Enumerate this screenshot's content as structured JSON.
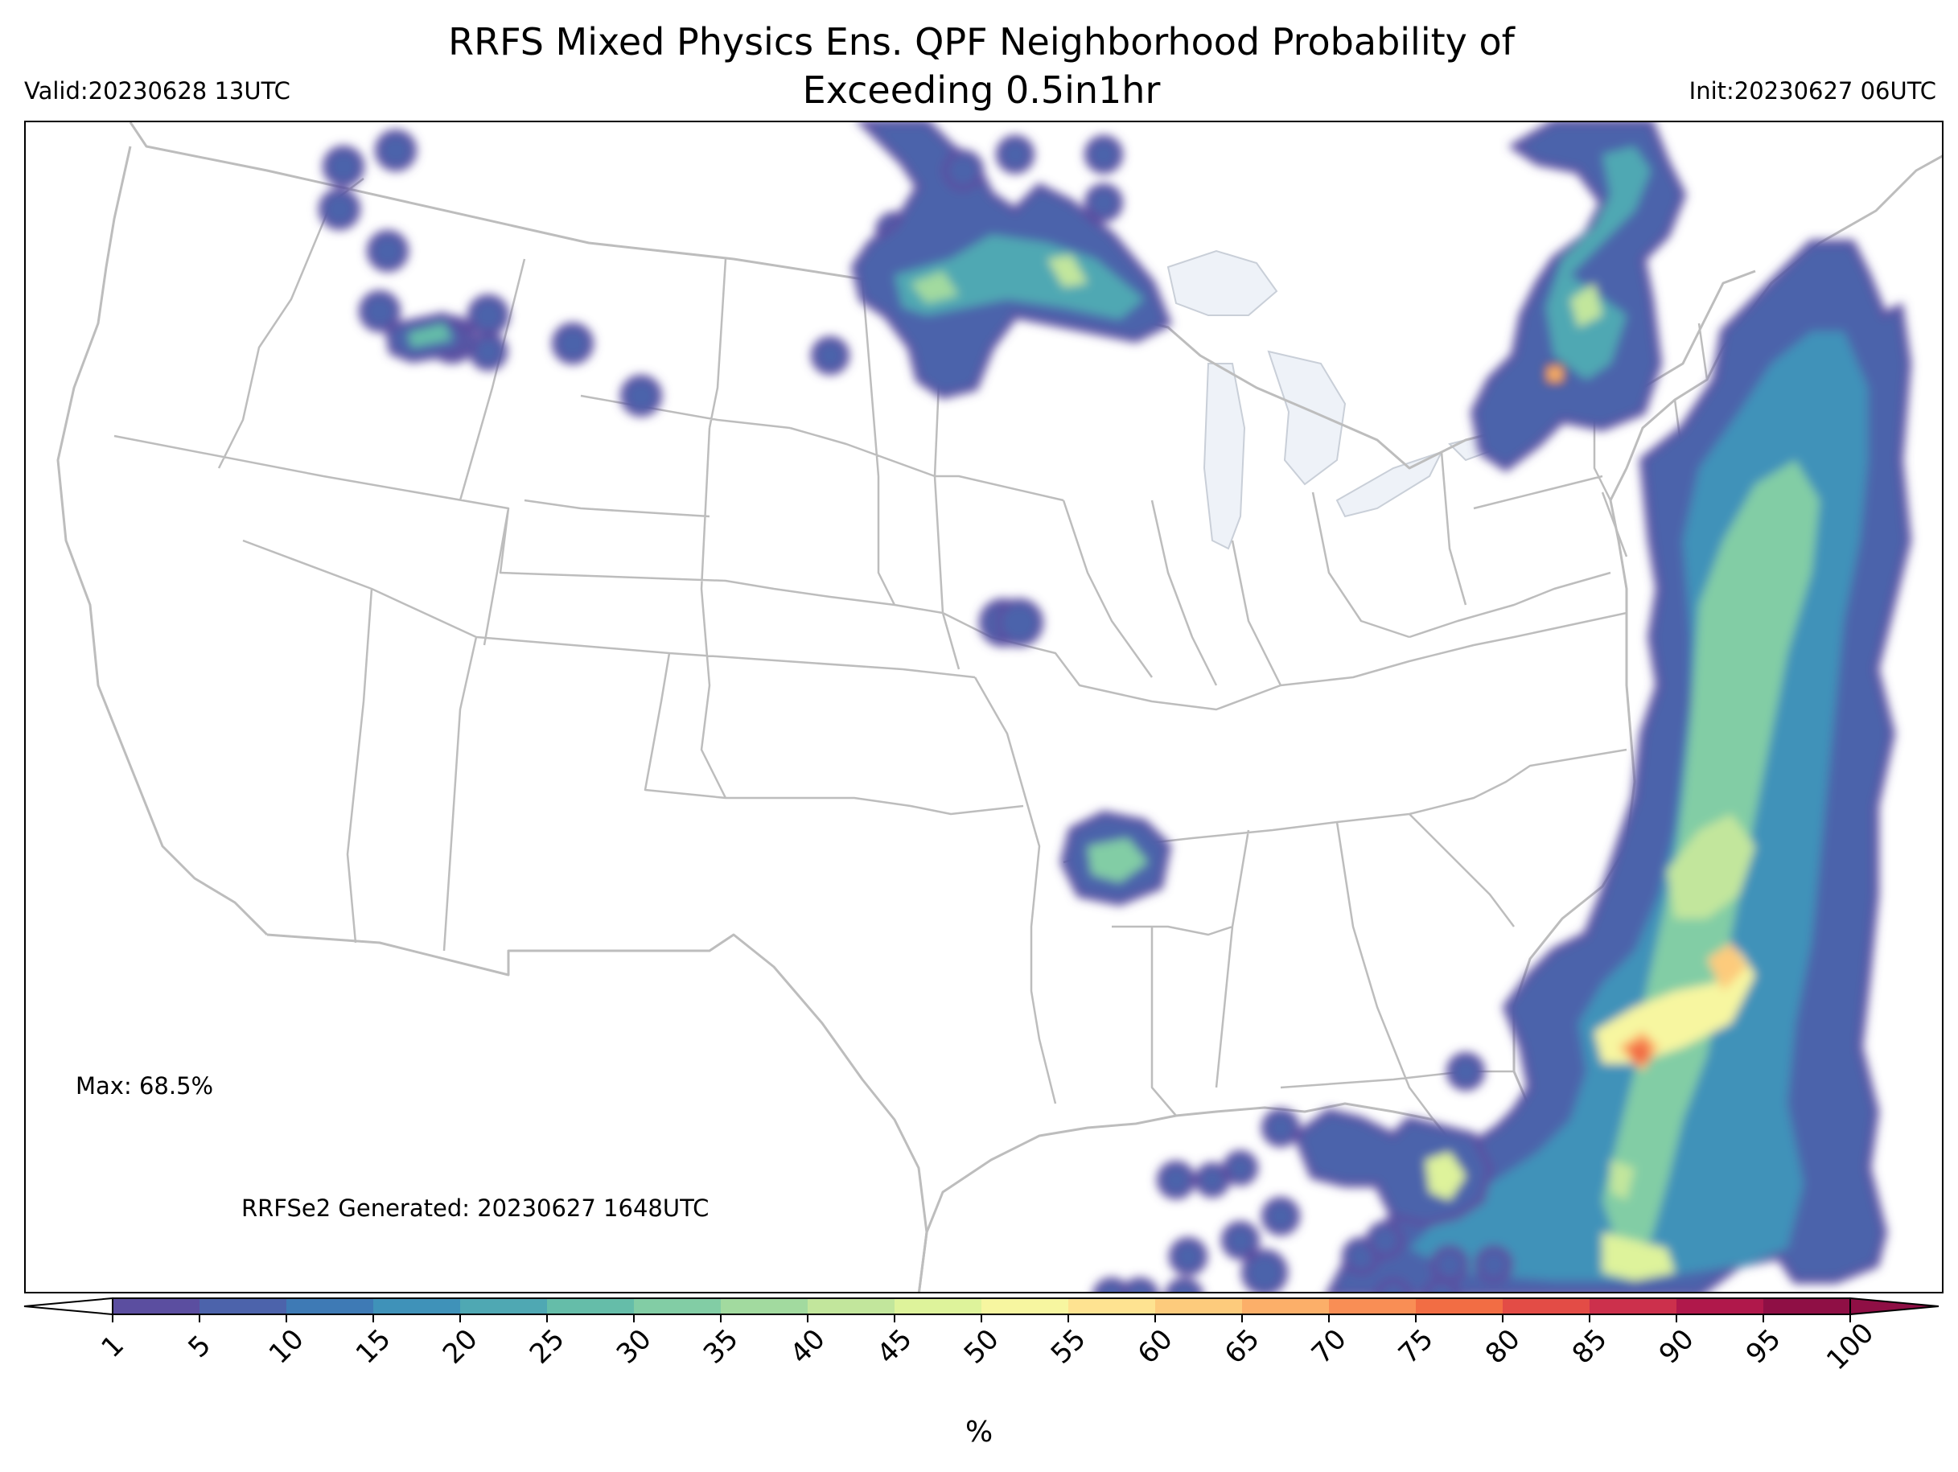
{
  "header": {
    "title_line1": "RRFS Mixed Physics Ens. QPF Neighborhood Probability of",
    "title_line2": "Exceeding 0.5in1hr",
    "valid": "Valid:20230628 13UTC",
    "init": "Init:20230627 06UTC"
  },
  "annotations": {
    "max": "Max: 68.5%",
    "generated": "RRFSe2 Generated: 20230627 1648UTC"
  },
  "colorbar": {
    "unit": "%",
    "ticks": [
      "1",
      "5",
      "10",
      "15",
      "20",
      "25",
      "30",
      "35",
      "40",
      "45",
      "50",
      "55",
      "60",
      "65",
      "70",
      "75",
      "80",
      "85",
      "90",
      "95",
      "100"
    ],
    "colors": [
      "#5b4ea0",
      "#4c63ab",
      "#3e7ab5",
      "#3f92b9",
      "#4fa8b3",
      "#65bda9",
      "#82cda5",
      "#a2da9f",
      "#c2e69c",
      "#def39b",
      "#f7f6a0",
      "#fee391",
      "#fdcb7c",
      "#fcaf69",
      "#f98e55",
      "#f26d44",
      "#e34c46",
      "#cc304c",
      "#b0184b",
      "#8f0f45"
    ],
    "extend": "both"
  },
  "map": {
    "region": "Contiguous United States",
    "boundary_color": "#bdbdbd",
    "lakes_color": "#eef2f8"
  }
}
